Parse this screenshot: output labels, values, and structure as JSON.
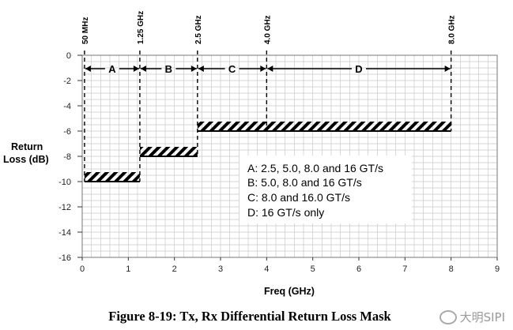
{
  "chart_data": {
    "type": "mask",
    "xlabel": "Freq (GHz)",
    "ylabel": "Return\nLoss (dB)",
    "xlim": [
      0,
      9
    ],
    "ylim": [
      -16,
      0
    ],
    "x_ticks": [
      0,
      1,
      2,
      3,
      4,
      5,
      6,
      7,
      8,
      9
    ],
    "y_ticks": [
      0,
      -2,
      -4,
      -6,
      -8,
      -10,
      -12,
      -14,
      -16
    ],
    "grid": true,
    "freq_markers": [
      {
        "x": 0.05,
        "label": "50 MHz"
      },
      {
        "x": 1.25,
        "label": "1.25 GHz"
      },
      {
        "x": 2.5,
        "label": "2.5 GHz"
      },
      {
        "x": 4.0,
        "label": "4.0 GHz"
      },
      {
        "x": 8.0,
        "label": "8.0 GHz"
      }
    ],
    "regions": [
      {
        "label": "A",
        "x_start": 0.05,
        "x_end": 1.25
      },
      {
        "label": "B",
        "x_start": 1.25,
        "x_end": 2.5
      },
      {
        "label": "C",
        "x_start": 2.5,
        "x_end": 4.0
      },
      {
        "label": "D",
        "x_start": 4.0,
        "x_end": 8.0
      }
    ],
    "mask_segments": [
      {
        "x_start": 0.05,
        "x_end": 1.25,
        "y": -10
      },
      {
        "x_start": 1.25,
        "x_end": 2.5,
        "y": -8
      },
      {
        "x_start": 2.5,
        "x_end": 8.0,
        "y": -6
      }
    ],
    "legend": [
      "A: 2.5, 5.0, 8.0 and 16 GT/s",
      "B: 5.0, 8.0 and 16 GT/s",
      "C: 8.0 and 16.0 GT/s",
      "D: 16 GT/s only"
    ]
  },
  "caption": "Figure 8-19:  Tx, Rx Differential Return Loss Mask",
  "watermark": "大明SIPI",
  "colors": {
    "mask": "#000000",
    "grid": "#c8c8c8",
    "frame": "#777777"
  }
}
